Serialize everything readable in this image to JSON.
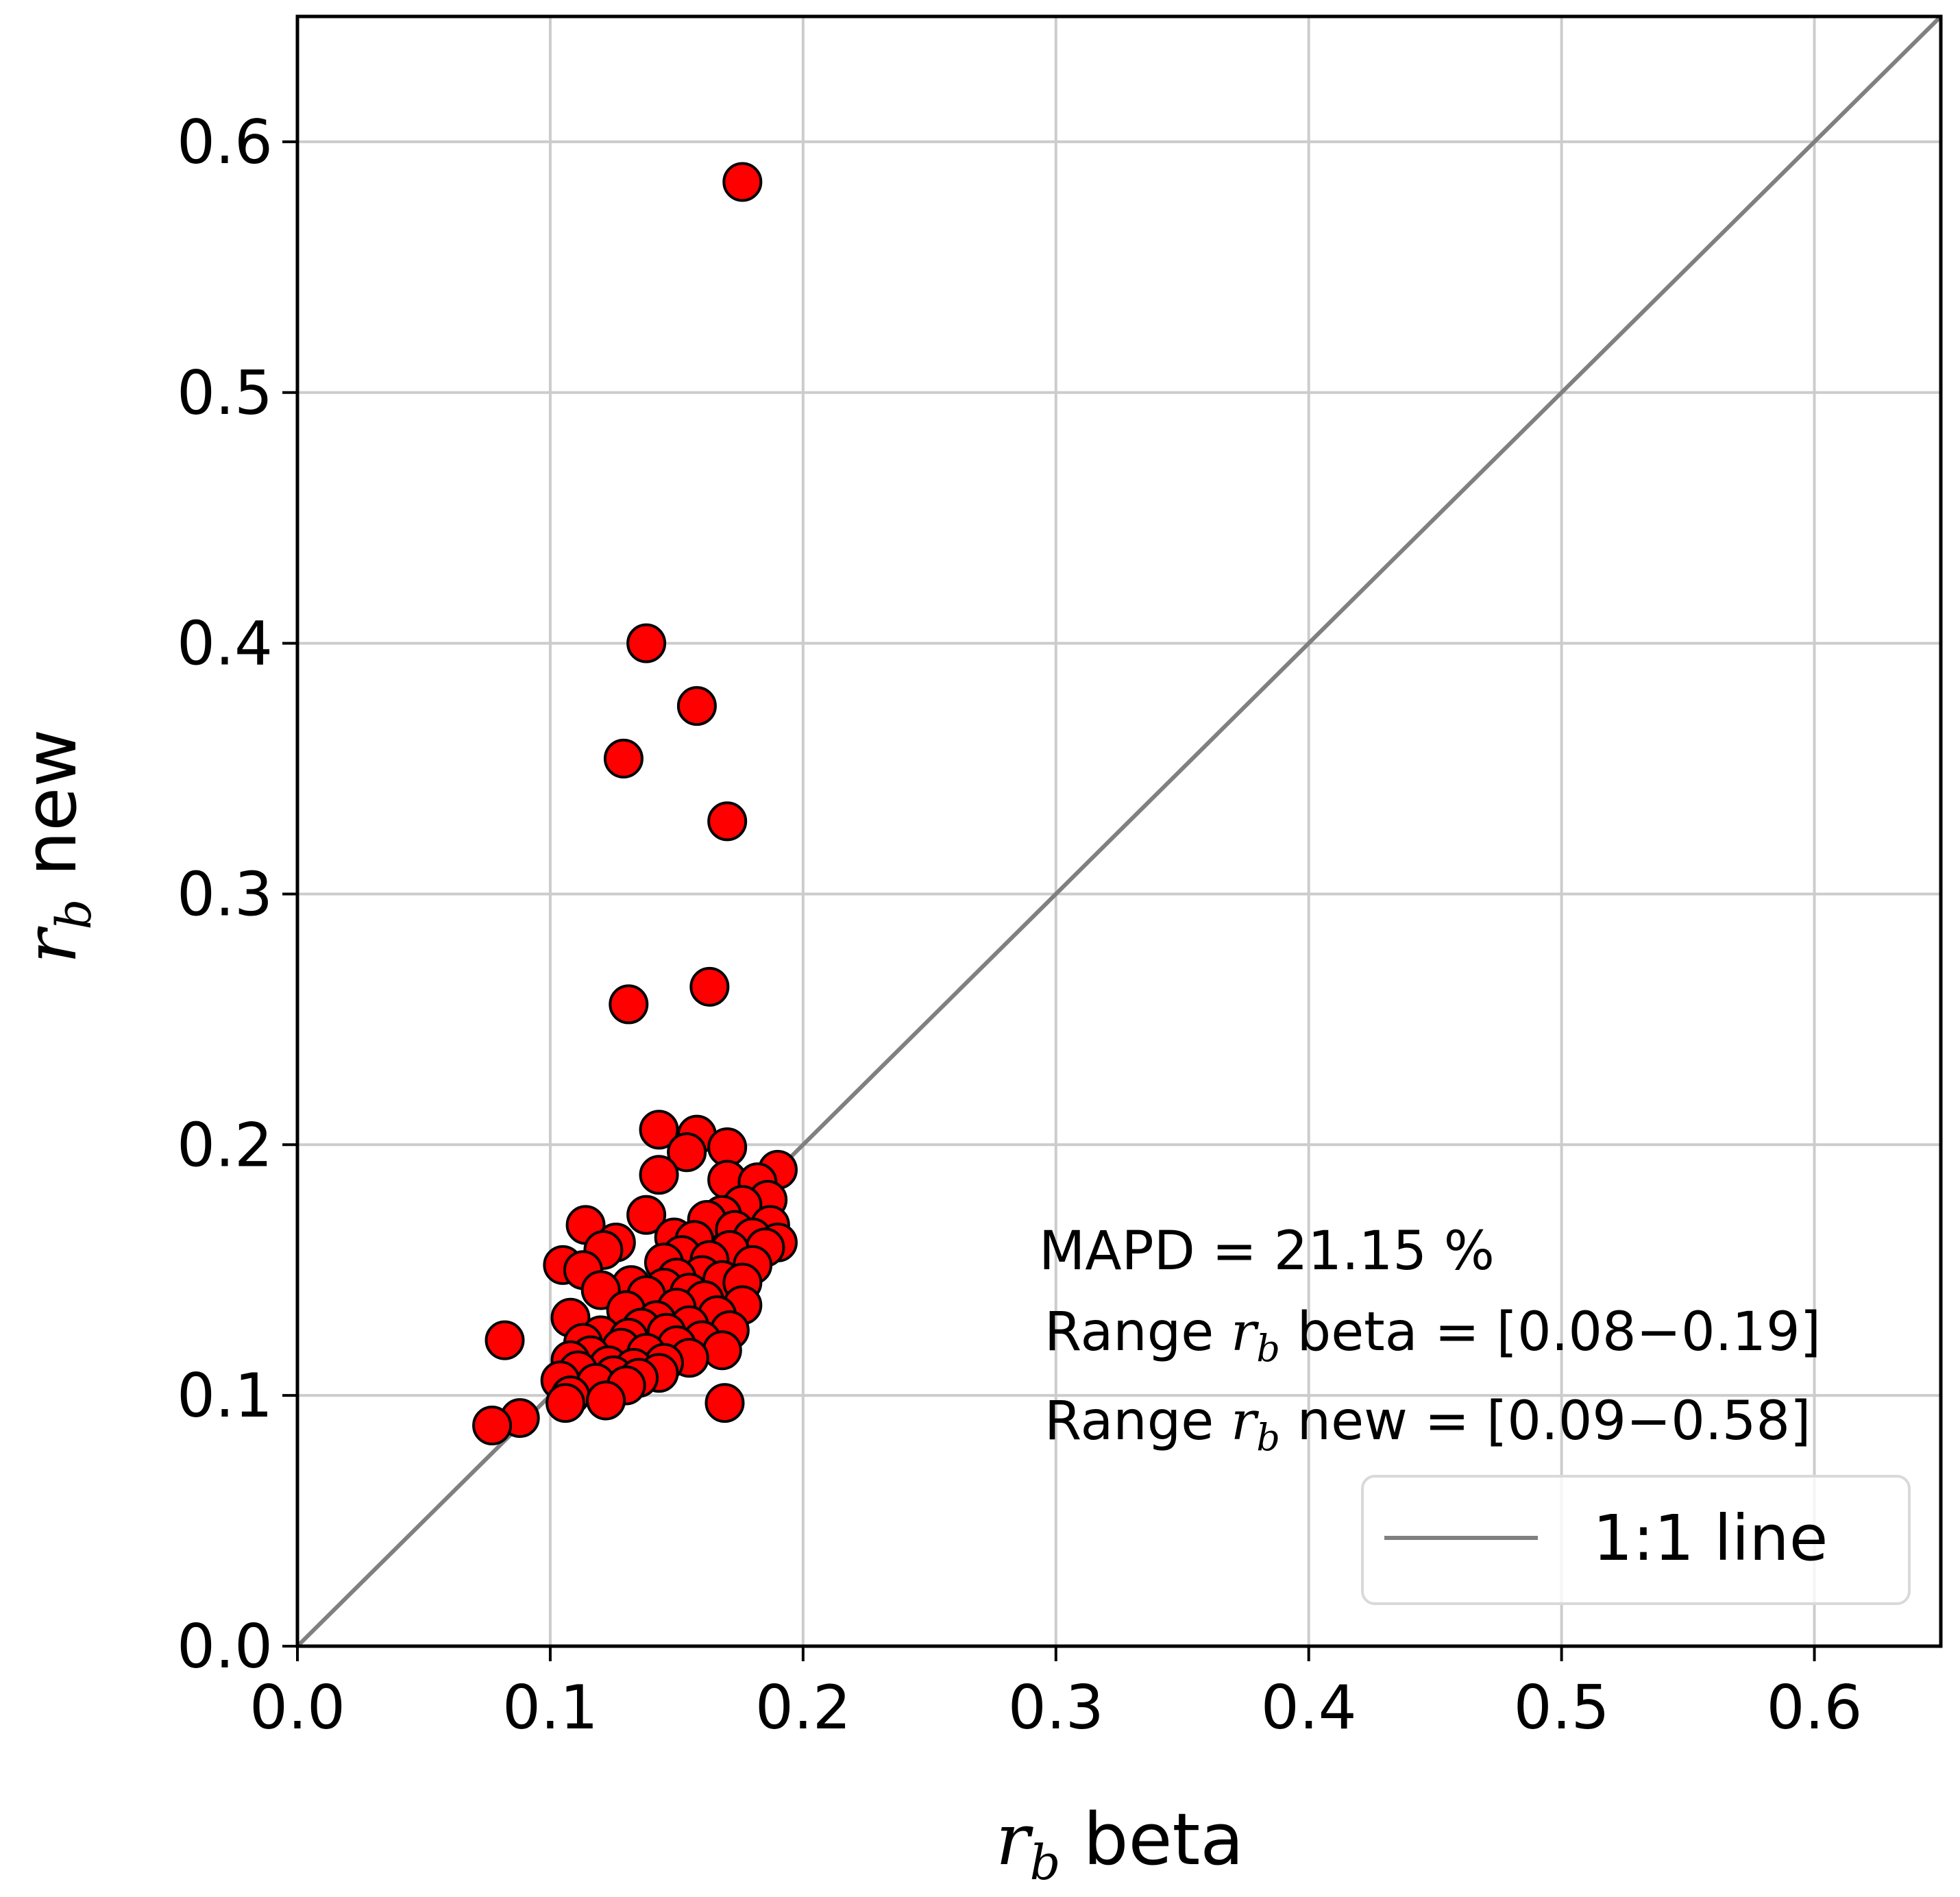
{
  "chart_data": {
    "type": "scatter",
    "xlim": [
      0.0,
      0.65
    ],
    "ylim": [
      0.0,
      0.65
    ],
    "grid": true,
    "x_ticks": [
      "0.0",
      "0.1",
      "0.2",
      "0.3",
      "0.4",
      "0.5",
      "0.6"
    ],
    "y_ticks": [
      "0.0",
      "0.1",
      "0.2",
      "0.3",
      "0.4",
      "0.5",
      "0.6"
    ],
    "xlabel": {
      "symbol": "r",
      "subscript": "b",
      "text": " beta"
    },
    "ylabel": {
      "symbol": "r",
      "subscript": "b",
      "text": " new"
    },
    "annotations": {
      "mapd": "MAPD = 21.15 %",
      "range_beta": {
        "prefix": "Range ",
        "symbol": "r",
        "subscript": "b",
        "suffix": " beta = [0.08−0.19]"
      },
      "range_new": {
        "prefix": "Range ",
        "symbol": "r",
        "subscript": "b",
        "suffix": " new = [0.09−0.58]"
      }
    },
    "legend": {
      "placement": "lower-right",
      "entries": [
        {
          "label": "1:1 line",
          "color": "#808080"
        }
      ]
    },
    "reference_line": {
      "from": [
        0.0,
        0.0
      ],
      "to": [
        0.65,
        0.65
      ],
      "color": "#808080"
    },
    "series": [
      {
        "marker_color": "#ff0000",
        "edge_color": "#000000",
        "points": [
          [
            0.176,
            0.584
          ],
          [
            0.138,
            0.4
          ],
          [
            0.158,
            0.375
          ],
          [
            0.129,
            0.354
          ],
          [
            0.17,
            0.329
          ],
          [
            0.131,
            0.256
          ],
          [
            0.163,
            0.263
          ],
          [
            0.143,
            0.206
          ],
          [
            0.158,
            0.204
          ],
          [
            0.17,
            0.199
          ],
          [
            0.154,
            0.197
          ],
          [
            0.19,
            0.19
          ],
          [
            0.143,
            0.188
          ],
          [
            0.17,
            0.186
          ],
          [
            0.182,
            0.185
          ],
          [
            0.186,
            0.178
          ],
          [
            0.176,
            0.176
          ],
          [
            0.168,
            0.172
          ],
          [
            0.138,
            0.172
          ],
          [
            0.162,
            0.17
          ],
          [
            0.187,
            0.168
          ],
          [
            0.114,
            0.168
          ],
          [
            0.173,
            0.166
          ],
          [
            0.18,
            0.163
          ],
          [
            0.149,
            0.163
          ],
          [
            0.157,
            0.162
          ],
          [
            0.126,
            0.161
          ],
          [
            0.19,
            0.161
          ],
          [
            0.185,
            0.159
          ],
          [
            0.171,
            0.158
          ],
          [
            0.121,
            0.158
          ],
          [
            0.152,
            0.156
          ],
          [
            0.163,
            0.154
          ],
          [
            0.145,
            0.153
          ],
          [
            0.18,
            0.152
          ],
          [
            0.105,
            0.152
          ],
          [
            0.113,
            0.15
          ],
          [
            0.16,
            0.148
          ],
          [
            0.15,
            0.147
          ],
          [
            0.168,
            0.146
          ],
          [
            0.176,
            0.145
          ],
          [
            0.132,
            0.144
          ],
          [
            0.145,
            0.143
          ],
          [
            0.12,
            0.142
          ],
          [
            0.155,
            0.141
          ],
          [
            0.138,
            0.14
          ],
          [
            0.161,
            0.138
          ],
          [
            0.176,
            0.136
          ],
          [
            0.15,
            0.135
          ],
          [
            0.13,
            0.134
          ],
          [
            0.166,
            0.132
          ],
          [
            0.108,
            0.131
          ],
          [
            0.142,
            0.13
          ],
          [
            0.155,
            0.128
          ],
          [
            0.136,
            0.127
          ],
          [
            0.171,
            0.126
          ],
          [
            0.146,
            0.125
          ],
          [
            0.12,
            0.124
          ],
          [
            0.131,
            0.123
          ],
          [
            0.16,
            0.122
          ],
          [
            0.082,
            0.122
          ],
          [
            0.113,
            0.121
          ],
          [
            0.15,
            0.12
          ],
          [
            0.128,
            0.119
          ],
          [
            0.168,
            0.118
          ],
          [
            0.138,
            0.117
          ],
          [
            0.116,
            0.116
          ],
          [
            0.155,
            0.115
          ],
          [
            0.108,
            0.114
          ],
          [
            0.145,
            0.113
          ],
          [
            0.123,
            0.112
          ],
          [
            0.133,
            0.111
          ],
          [
            0.111,
            0.11
          ],
          [
            0.143,
            0.109
          ],
          [
            0.125,
            0.108
          ],
          [
            0.135,
            0.107
          ],
          [
            0.104,
            0.106
          ],
          [
            0.118,
            0.105
          ],
          [
            0.13,
            0.104
          ],
          [
            0.108,
            0.1
          ],
          [
            0.122,
            0.098
          ],
          [
            0.169,
            0.097
          ],
          [
            0.106,
            0.097
          ],
          [
            0.088,
            0.091
          ],
          [
            0.077,
            0.088
          ]
        ]
      }
    ]
  }
}
